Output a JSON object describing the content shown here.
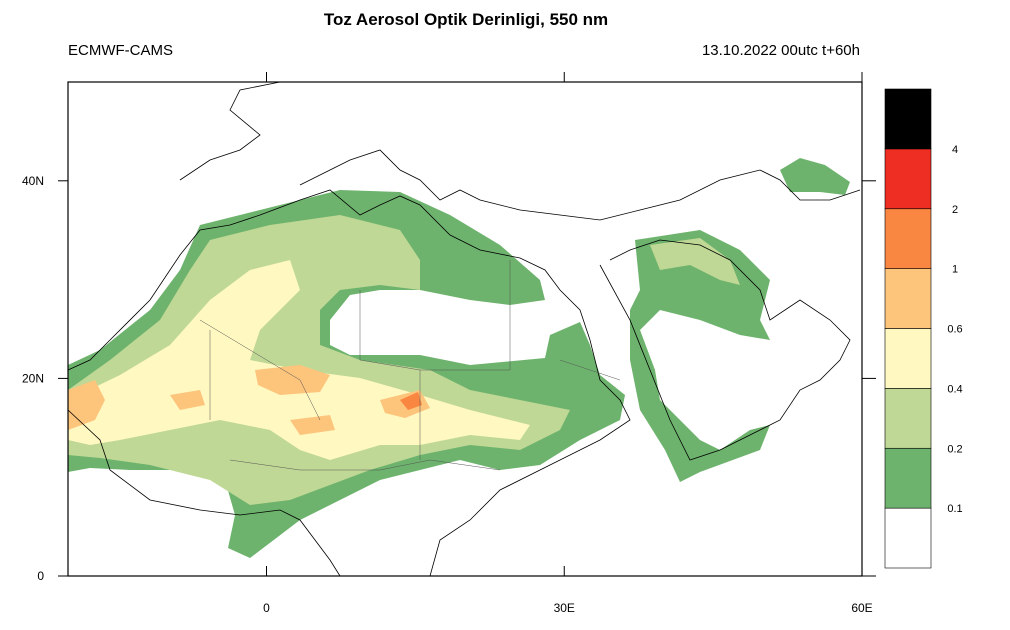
{
  "header": {
    "title": "Toz Aerosol Optik Derinligi, 550 nm",
    "source": "ECMWF-CAMS",
    "valid_time": "13.10.2022 00utc t+60h"
  },
  "map": {
    "xlim": [
      -20,
      60
    ],
    "ylim": [
      0,
      50
    ],
    "xticks": [
      0,
      {
        "value": 30,
        "label": "30E"
      },
      {
        "value": 60,
        "label": "60E"
      }
    ],
    "yticks": [
      0,
      {
        "value": 20,
        "label": "20N"
      },
      {
        "value": 40,
        "label": "40N"
      }
    ]
  },
  "colorbar": {
    "levels": [
      0.1,
      0.2,
      0.4,
      0.6,
      1,
      2,
      4
    ],
    "colors": [
      "#ffffff",
      "#6db36d",
      "#bfd895",
      "#fff8c0",
      "#fdc47c",
      "#f98741",
      "#ee2e22",
      "#000000"
    ]
  }
}
